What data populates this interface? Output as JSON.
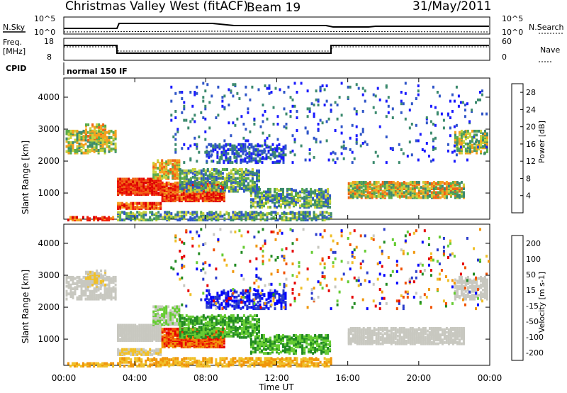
{
  "header": {
    "station": "Christmas Valley West (fitACF)",
    "beam": "Beam 19",
    "date": "31/May/2011"
  },
  "top_panels": {
    "nsky_label": "N.Sky",
    "nsearch_label": "N.Search",
    "noise_ticks": [
      "10^5",
      "10^0"
    ],
    "freq_label_1": "Freq.",
    "freq_label_2": "[MHz]",
    "freq_ticks": [
      "18",
      "8"
    ],
    "nave_label": "Nave",
    "nave_ticks": [
      "60",
      "0"
    ],
    "cpid_label": "CPID",
    "cpid_value": "normal 150 IF"
  },
  "colors": {
    "power": [
      "#1a1aff",
      "#2f55c8",
      "#3c8a6e",
      "#5aab4a",
      "#c8d23c",
      "#f5a01e",
      "#f06414",
      "#f01e0a",
      "#dc0000"
    ],
    "velocity": [
      "#0000ff",
      "#2a3ccc",
      "#228b22",
      "#66cc33",
      "#c8c8c0",
      "#f0c028",
      "#f0960a",
      "#f05000",
      "#e60000"
    ]
  },
  "chart_data": [
    {
      "type": "heatmap",
      "name": "Power",
      "ylabel": "Slant Range [km]",
      "xlabel": "Time UT",
      "x_ticks": [
        "00:00",
        "04:00",
        "08:00",
        "12:00",
        "16:00",
        "20:00",
        "00:00"
      ],
      "xlim_hours": [
        0,
        24
      ],
      "y_ticks": [
        1000,
        2000,
        3000,
        4000
      ],
      "ylim": [
        180,
        4600
      ],
      "colorbar_label": "Power [dB]",
      "colorbar_ticks": [
        4,
        8,
        12,
        16,
        20,
        24,
        28
      ],
      "colorbar_range": [
        0,
        30
      ]
    },
    {
      "type": "heatmap",
      "name": "Velocity",
      "ylabel": "Slant Range [km]",
      "xlabel": "Time UT",
      "x_ticks": [
        "00:00",
        "04:00",
        "08:00",
        "12:00",
        "16:00",
        "20:00",
        "00:00"
      ],
      "xlim_hours": [
        0,
        24
      ],
      "y_ticks": [
        1000,
        2000,
        3000,
        4000
      ],
      "ylim": [
        180,
        4600
      ],
      "colorbar_label": "Velocity [m s-1]",
      "colorbar_ticks": [
        200,
        100,
        50,
        15,
        -15,
        -50,
        -100,
        -200
      ]
    }
  ]
}
